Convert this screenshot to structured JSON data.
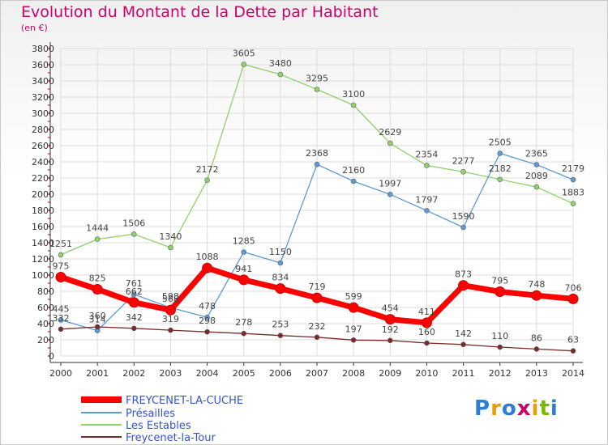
{
  "title": "Evolution du Montant de la Dette par Habitant",
  "subtitle": "(en €)",
  "logo_text": "Proxiti",
  "chart_data": {
    "type": "line",
    "title": "Evolution du Montant de la Dette par Habitant",
    "subtitle": "(en €)",
    "xlabel": "",
    "ylabel": "",
    "ylim": [
      0,
      3800
    ],
    "yticks": [
      0,
      200,
      400,
      600,
      800,
      1000,
      1200,
      1400,
      1600,
      1800,
      2000,
      2200,
      2400,
      2600,
      2800,
      3000,
      3200,
      3400,
      3600,
      3800
    ],
    "grid": true,
    "legend_position": "bottom-left",
    "categories": [
      "2000",
      "2001",
      "2002",
      "2003",
      "2004",
      "2005",
      "2006",
      "2007",
      "2008",
      "2009",
      "2010",
      "2011",
      "2012",
      "2013",
      "2014"
    ],
    "series": [
      {
        "name": "FREYCENET-LA-CUCHE",
        "color": "#ff0000",
        "values": [
          975,
          825,
          662,
          568,
          1088,
          941,
          834,
          719,
          599,
          454,
          411,
          873,
          795,
          748,
          706
        ]
      },
      {
        "name": "Présailles",
        "color": "#5b9bd5",
        "values": [
          445,
          314,
          761,
          598,
          478,
          1285,
          1150,
          2368,
          2160,
          1997,
          1797,
          1590,
          2505,
          2365,
          2179
        ]
      },
      {
        "name": "Les Estables",
        "color": "#8fd16a",
        "values": [
          1251,
          1444,
          1506,
          1340,
          2172,
          3605,
          3480,
          3295,
          3100,
          2629,
          2354,
          2277,
          2182,
          2089,
          1883
        ]
      },
      {
        "name": "Freycenet-la-Tour",
        "color": "#7a2a2a",
        "values": [
          332,
          360,
          342,
          319,
          298,
          278,
          253,
          232,
          197,
          192,
          160,
          142,
          110,
          86,
          63
        ]
      }
    ]
  }
}
